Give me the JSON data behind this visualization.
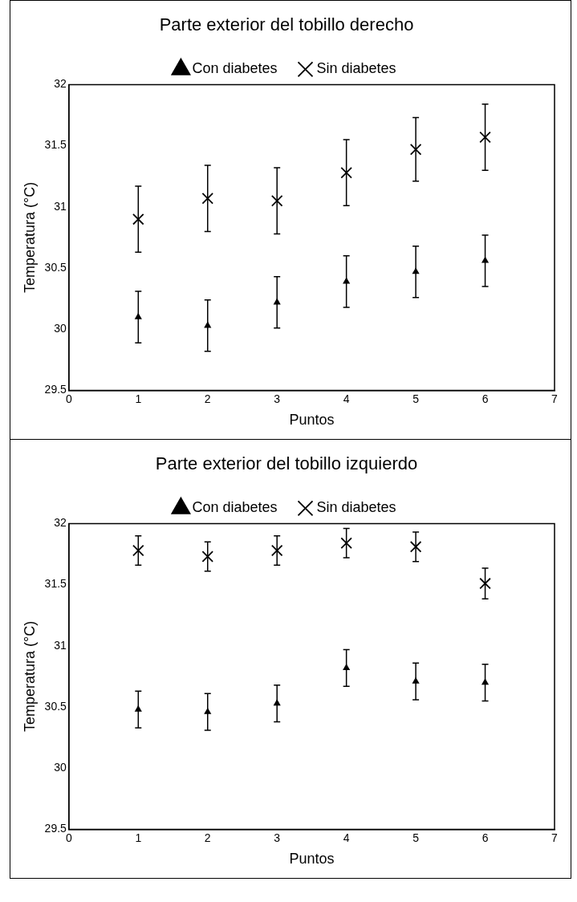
{
  "chart_data": [
    {
      "type": "scatter",
      "title": "Parte exterior del tobillo derecho",
      "xlabel": "Puntos",
      "ylabel": "Temperatura (°C)",
      "xlim": [
        0,
        7
      ],
      "xticks": [
        0,
        1,
        2,
        3,
        4,
        5,
        6,
        7
      ],
      "ylim": [
        29.5,
        32
      ],
      "yticks": [
        29.5,
        30,
        30.5,
        31,
        31.5,
        32
      ],
      "grid": false,
      "legend": "top",
      "series": [
        {
          "name": "Con diabetes",
          "color": "#000000",
          "marker": "triangle",
          "x": [
            1,
            2,
            3,
            4,
            5,
            6
          ],
          "values": [
            30.1,
            30.03,
            30.22,
            30.39,
            30.47,
            30.56
          ],
          "errors": [
            0.21,
            0.21,
            0.21,
            0.21,
            0.21,
            0.21
          ]
        },
        {
          "name": "Sin diabetes",
          "color": "#000000",
          "marker": "cross",
          "x": [
            1,
            2,
            3,
            4,
            5,
            6
          ],
          "values": [
            30.9,
            31.07,
            31.05,
            31.28,
            31.47,
            31.57
          ],
          "errors": [
            0.27,
            0.27,
            0.27,
            0.27,
            0.26,
            0.27
          ]
        }
      ]
    },
    {
      "type": "scatter",
      "title": "Parte exterior del tobillo izquierdo",
      "xlabel": "Puntos",
      "ylabel": "Temperatura (°C)",
      "xlim": [
        0,
        7
      ],
      "xticks": [
        0,
        1,
        2,
        3,
        4,
        5,
        6,
        7
      ],
      "ylim": [
        29.5,
        32
      ],
      "yticks": [
        29.5,
        30,
        30.5,
        31,
        31.5,
        32
      ],
      "grid": false,
      "legend": "top",
      "series": [
        {
          "name": "Con diabetes",
          "color": "#000000",
          "marker": "triangle",
          "x": [
            1,
            2,
            3,
            4,
            5,
            6
          ],
          "values": [
            30.48,
            30.46,
            30.53,
            30.82,
            30.71,
            30.7
          ],
          "errors": [
            0.15,
            0.15,
            0.15,
            0.15,
            0.15,
            0.15
          ]
        },
        {
          "name": "Sin diabetes",
          "color": "#000000",
          "marker": "cross",
          "x": [
            1,
            2,
            3,
            4,
            5,
            6
          ],
          "values": [
            31.78,
            31.73,
            31.78,
            31.84,
            31.81,
            31.51
          ],
          "errors": [
            0.12,
            0.12,
            0.12,
            0.12,
            0.12,
            0.125
          ]
        }
      ]
    }
  ]
}
